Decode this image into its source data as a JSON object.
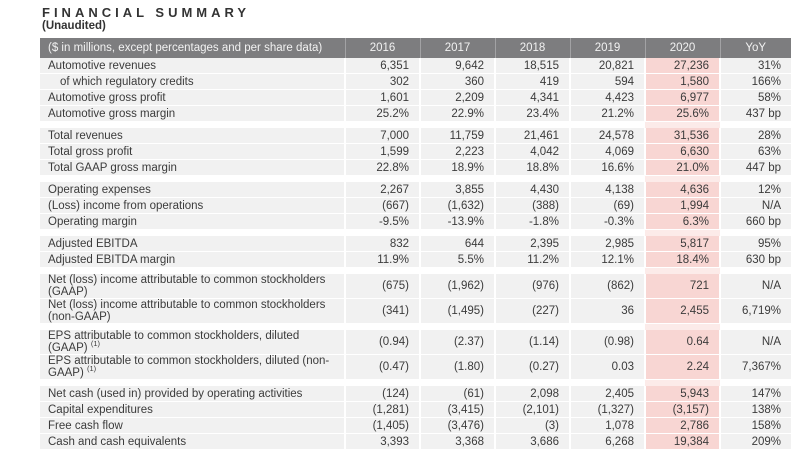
{
  "page": {
    "title": "FINANCIAL SUMMARY",
    "subtitle": "(Unaudited)"
  },
  "colors": {
    "header_bg": "#7d7d7f",
    "header_text": "#f2f2f2",
    "row_bg": "#f1f1f1",
    "highlight_column_bg": "#f8d6d3",
    "highlight_gap_bg": "#fcebe9",
    "body_text": "#3b3b3b"
  },
  "table": {
    "header": {
      "label": "($ in millions, except percentages and per share data)",
      "columns": [
        "2016",
        "2017",
        "2018",
        "2019",
        "2020",
        "YoY"
      ]
    },
    "highlight_column": "2020",
    "sections": [
      {
        "rows": [
          {
            "label": "Automotive revenues",
            "values": [
              "6,351",
              "9,642",
              "18,515",
              "20,821",
              "27,236",
              "31%"
            ]
          },
          {
            "label": "of which regulatory credits",
            "indent": true,
            "values": [
              "302",
              "360",
              "419",
              "594",
              "1,580",
              "166%"
            ]
          },
          {
            "label": "Automotive gross profit",
            "values": [
              "1,601",
              "2,209",
              "4,341",
              "4,423",
              "6,977",
              "58%"
            ]
          },
          {
            "label": "Automotive gross margin",
            "values": [
              "25.2%",
              "22.9%",
              "23.4%",
              "21.2%",
              "25.6%",
              "437 bp"
            ]
          }
        ]
      },
      {
        "rows": [
          {
            "label": "Total revenues",
            "values": [
              "7,000",
              "11,759",
              "21,461",
              "24,578",
              "31,536",
              "28%"
            ]
          },
          {
            "label": "Total gross profit",
            "values": [
              "1,599",
              "2,223",
              "4,042",
              "4,069",
              "6,630",
              "63%"
            ]
          },
          {
            "label": "Total GAAP gross margin",
            "values": [
              "22.8%",
              "18.9%",
              "18.8%",
              "16.6%",
              "21.0%",
              "447 bp"
            ]
          }
        ]
      },
      {
        "rows": [
          {
            "label": "Operating expenses",
            "values": [
              "2,267",
              "3,855",
              "4,430",
              "4,138",
              "4,636",
              "12%"
            ]
          },
          {
            "label": "(Loss) income from operations",
            "values": [
              "(667)",
              "(1,632)",
              "(388)",
              "(69)",
              "1,994",
              "N/A"
            ]
          },
          {
            "label": "Operating margin",
            "values": [
              "-9.5%",
              "-13.9%",
              "-1.8%",
              "-0.3%",
              "6.3%",
              "660 bp"
            ]
          }
        ]
      },
      {
        "rows": [
          {
            "label": "Adjusted EBITDA",
            "values": [
              "832",
              "644",
              "2,395",
              "2,985",
              "5,817",
              "95%"
            ]
          },
          {
            "label": "Adjusted EBITDA margin",
            "values": [
              "11.9%",
              "5.5%",
              "11.2%",
              "12.1%",
              "18.4%",
              "630 bp"
            ]
          }
        ]
      },
      {
        "rows": [
          {
            "label": "Net (loss) income attributable to common stockholders (GAAP)",
            "values": [
              "(675)",
              "(1,962)",
              "(976)",
              "(862)",
              "721",
              "N/A"
            ]
          },
          {
            "label": "Net (loss) income attributable to common stockholders (non-GAAP)",
            "values": [
              "(341)",
              "(1,495)",
              "(227)",
              "36",
              "2,455",
              "6,719%"
            ]
          }
        ]
      },
      {
        "rows": [
          {
            "label": "EPS attributable to common stockholders, diluted (GAAP)",
            "footnote": "(1)",
            "values": [
              "(0.94)",
              "(2.37)",
              "(1.14)",
              "(0.98)",
              "0.64",
              "N/A"
            ]
          },
          {
            "label": "EPS attributable to common stockholders, diluted (non-GAAP)",
            "footnote": "(1)",
            "values": [
              "(0.47)",
              "(1.80)",
              "(0.27)",
              "0.03",
              "2.24",
              "7,367%"
            ]
          }
        ]
      },
      {
        "rows": [
          {
            "label": "Net cash (used in) provided by operating activities",
            "values": [
              "(124)",
              "(61)",
              "2,098",
              "2,405",
              "5,943",
              "147%"
            ]
          },
          {
            "label": "Capital expenditures",
            "values": [
              "(1,281)",
              "(3,415)",
              "(2,101)",
              "(1,327)",
              "(3,157)",
              "138%"
            ]
          },
          {
            "label": "Free cash flow",
            "values": [
              "(1,405)",
              "(3,476)",
              "(3)",
              "1,078",
              "2,786",
              "158%"
            ]
          },
          {
            "label": "Cash and cash equivalents",
            "values": [
              "3,393",
              "3,368",
              "3,686",
              "6,268",
              "19,384",
              "209%"
            ]
          }
        ]
      }
    ]
  }
}
